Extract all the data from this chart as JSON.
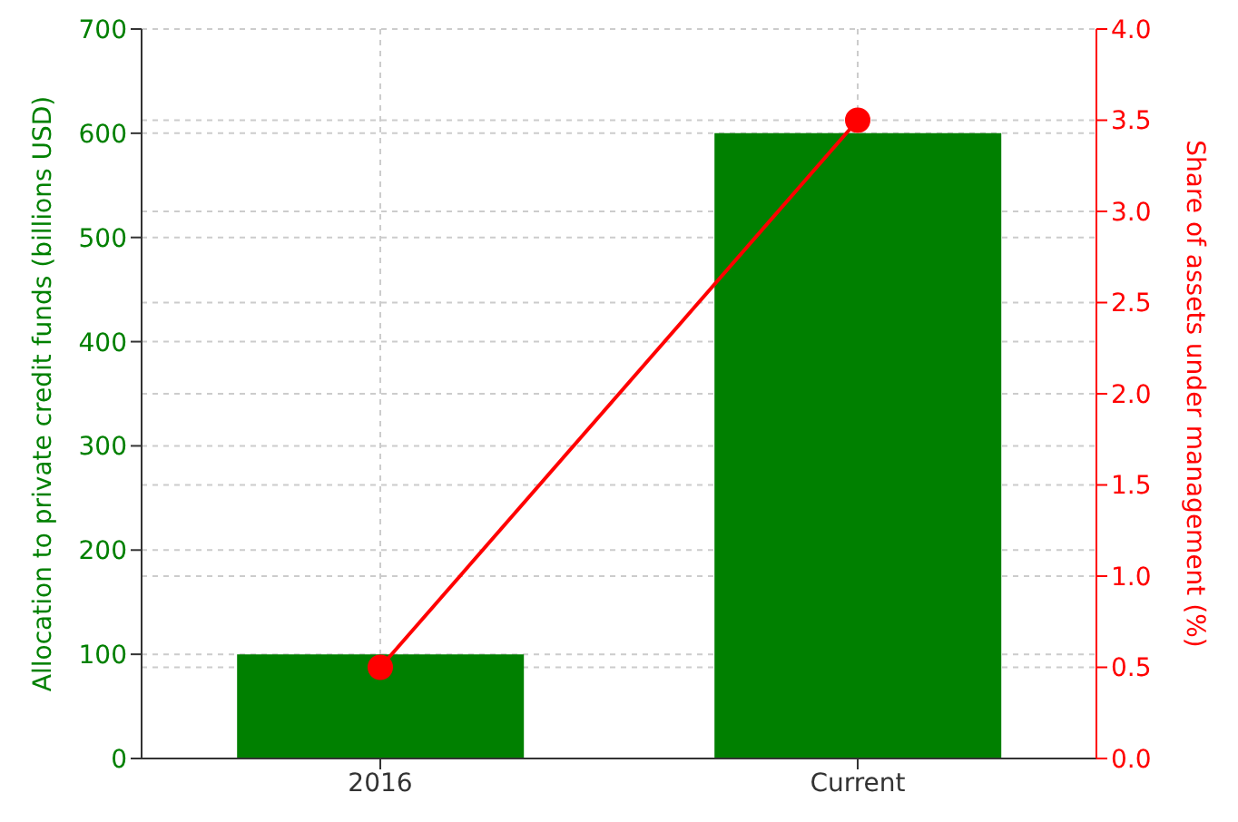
{
  "chart_data": {
    "type": "bar",
    "categories": [
      "2016",
      "Current"
    ],
    "series": [
      {
        "color": "#008000",
        "values": [
          100,
          600
        ]
      },
      {
        "type": "line",
        "axis": "y2",
        "color": "#ff0000",
        "values": [
          0.5,
          3.5
        ]
      }
    ],
    "ylabel": "Allocation to private credit funds (billions USD)",
    "y2label": "Share of assets under management (%)",
    "ylim": [
      0,
      700
    ],
    "yticks": [
      0,
      100,
      200,
      300,
      400,
      500,
      600,
      700
    ],
    "y2lim": [
      0,
      4
    ],
    "y2ticks": [
      {
        "value": 0,
        "label": "0.0"
      },
      {
        "value": 0.5,
        "label": "0.5"
      },
      {
        "value": 1,
        "label": "1.0"
      },
      {
        "value": 1.5,
        "label": "1.5"
      },
      {
        "value": 2,
        "label": "2.0"
      },
      {
        "value": 2.5,
        "label": "2.5"
      },
      {
        "value": 3,
        "label": "3.0"
      },
      {
        "value": 3.5,
        "label": "3.5"
      },
      {
        "value": 4,
        "label": "4.0"
      }
    ],
    "grid": true,
    "marker": "circle",
    "line_style": "solid",
    "legend": false
  }
}
